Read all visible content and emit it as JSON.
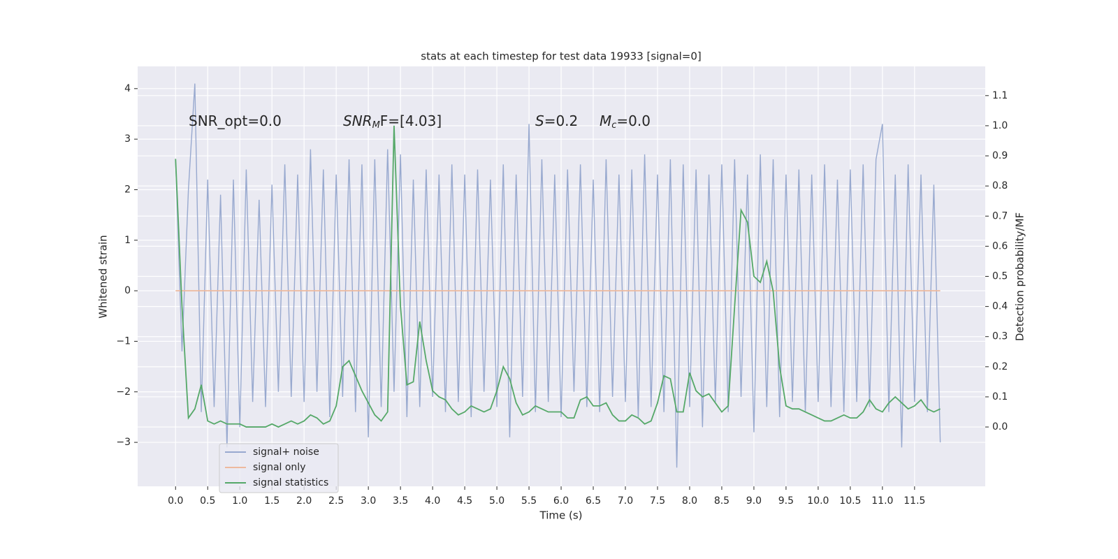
{
  "chart_data": {
    "type": "line",
    "title": "stats at each timestep for test data 19933 [signal=0]",
    "xlabel": "Time (s)",
    "ylabel": "Whitened strain",
    "y2label": "Detection probability/MF",
    "grid": true,
    "legend": "lower left",
    "xlim": [
      -0.59,
      12.6
    ],
    "ylim": [
      -3.87,
      4.44
    ],
    "y2lim": [
      -0.197,
      1.197
    ],
    "xticks": [
      {
        "value": 0,
        "label": "0.0"
      },
      0.5,
      {
        "value": 1,
        "label": "1.0"
      },
      1.5,
      {
        "value": 2,
        "label": "2.0"
      },
      2.5,
      {
        "value": 3,
        "label": "3.0"
      },
      3.5,
      {
        "value": 4,
        "label": "4.0"
      },
      4.5,
      {
        "value": 5,
        "label": "5.0"
      },
      5.5,
      {
        "value": 6,
        "label": "6.0"
      },
      6.5,
      {
        "value": 7,
        "label": "7.0"
      },
      7.5,
      {
        "value": 8,
        "label": "8.0"
      },
      8.5,
      {
        "value": 9,
        "label": "9.0"
      },
      9.5,
      {
        "value": 10,
        "label": "10.0"
      },
      10.5,
      {
        "value": 11,
        "label": "11.0"
      },
      11.5
    ],
    "yticks": [
      {
        "value": -3,
        "label": "−3"
      },
      {
        "value": -2,
        "label": "−2"
      },
      {
        "value": -1,
        "label": "−1"
      },
      0,
      1,
      2,
      3,
      4
    ],
    "y2ticks": [
      {
        "value": 0,
        "label": "0.0"
      },
      0.1,
      0.2,
      0.3,
      0.4,
      0.5,
      0.6,
      0.7,
      0.8,
      0.9,
      {
        "value": 1,
        "label": "1.0"
      },
      1.1
    ],
    "annotations": [
      [
        {
          "t": "SNR_opt=0.0"
        }
      ],
      [
        {
          "t": "SNR",
          "i": true
        },
        {
          "t": "M",
          "i": true,
          "sub": true
        },
        {
          "t": "F=[4.03]",
          "i": false
        }
      ],
      [
        {
          "t": "S",
          "i": true
        },
        {
          "t": "=0.2"
        }
      ],
      [
        {
          "t": "M",
          "i": true
        },
        {
          "t": "c",
          "i": true,
          "sub": true
        },
        {
          "t": "=0.0"
        }
      ]
    ],
    "x": [
      0,
      0.1,
      0.2,
      0.3,
      0.4,
      0.5,
      0.6,
      0.7,
      0.8,
      0.9,
      1,
      1.1,
      1.2,
      1.3,
      1.4,
      1.5,
      1.6,
      1.7,
      1.8,
      1.9,
      2,
      2.1,
      2.2,
      2.3,
      2.4,
      2.5,
      2.6,
      2.7,
      2.8,
      2.9,
      3,
      3.1,
      3.2,
      3.3,
      3.4,
      3.5,
      3.6,
      3.7,
      3.8,
      3.9,
      4,
      4.1,
      4.2,
      4.3,
      4.4,
      4.5,
      4.6,
      4.7,
      4.8,
      4.9,
      5,
      5.1,
      5.2,
      5.3,
      5.4,
      5.5,
      5.6,
      5.7,
      5.8,
      5.9,
      6,
      6.1,
      6.2,
      6.3,
      6.4,
      6.5,
      6.6,
      6.7,
      6.8,
      6.9,
      7,
      7.1,
      7.2,
      7.3,
      7.4,
      7.5,
      7.6,
      7.7,
      7.8,
      7.9,
      8,
      8.1,
      8.2,
      8.3,
      8.4,
      8.5,
      8.6,
      8.7,
      8.8,
      8.9,
      9,
      9.1,
      9.2,
      9.3,
      9.4,
      9.5,
      9.6,
      9.7,
      9.8,
      9.9,
      10,
      10.1,
      10.2,
      10.3,
      10.4,
      10.5,
      10.6,
      10.7,
      10.8,
      10.9,
      11,
      11.1,
      11.2,
      11.3,
      11.4,
      11.5,
      11.6,
      11.7,
      11.8,
      11.9
    ],
    "series": [
      {
        "name": "signal+ noise",
        "color": "#98a9cf",
        "values": [
          2.6,
          -1.2,
          2.0,
          4.1,
          -2.4,
          2.2,
          -2.3,
          1.9,
          -3.1,
          2.2,
          -2.7,
          2.4,
          -2.2,
          1.8,
          -2.3,
          2.1,
          -2.0,
          2.5,
          -2.1,
          2.3,
          -2.2,
          2.8,
          -2.0,
          2.4,
          -2.5,
          2.3,
          -2.1,
          2.6,
          -2.4,
          2.5,
          -2.9,
          2.6,
          -2.3,
          2.8,
          -2.0,
          2.7,
          -2.5,
          2.2,
          -2.3,
          2.4,
          -2.1,
          2.3,
          -2.4,
          2.5,
          -2.2,
          2.3,
          -2.5,
          2.4,
          -2.0,
          2.2,
          -2.3,
          2.5,
          -2.9,
          2.3,
          -2.1,
          3.3,
          -2.4,
          2.6,
          -2.2,
          2.3,
          -2.5,
          2.4,
          -2.0,
          2.5,
          -2.3,
          2.2,
          -2.4,
          2.6,
          -2.1,
          2.3,
          -2.2,
          2.4,
          -2.5,
          2.7,
          -2.3,
          2.3,
          -2.4,
          2.6,
          -3.5,
          2.5,
          -2.3,
          2.4,
          -2.7,
          2.3,
          -2.2,
          2.5,
          -2.4,
          2.6,
          -2.1,
          2.3,
          -2.8,
          2.7,
          -2.3,
          2.6,
          -2.5,
          2.3,
          -2.2,
          2.4,
          -2.4,
          2.3,
          -2.2,
          2.5,
          -2.3,
          2.2,
          -2.4,
          2.4,
          -2.2,
          2.5,
          -2.3,
          2.6,
          3.3,
          -2.4,
          2.3,
          -3.1,
          2.5,
          -2.2,
          2.3,
          -2.4,
          2.1,
          -3.0
        ]
      },
      {
        "name": "signal only",
        "color": "#eeb99e",
        "values": [
          0,
          0,
          0,
          0,
          0,
          0,
          0,
          0,
          0,
          0,
          0,
          0,
          0,
          0,
          0,
          0,
          0,
          0,
          0,
          0,
          0,
          0,
          0,
          0,
          0,
          0,
          0,
          0,
          0,
          0,
          0,
          0,
          0,
          0,
          0,
          0,
          0,
          0,
          0,
          0,
          0,
          0,
          0,
          0,
          0,
          0,
          0,
          0,
          0,
          0,
          0,
          0,
          0,
          0,
          0,
          0,
          0,
          0,
          0,
          0,
          0,
          0,
          0,
          0,
          0,
          0,
          0,
          0,
          0,
          0,
          0,
          0,
          0,
          0,
          0,
          0,
          0,
          0,
          0,
          0,
          0,
          0,
          0,
          0,
          0,
          0,
          0,
          0,
          0,
          0,
          0,
          0,
          0,
          0,
          0,
          0,
          0,
          0,
          0,
          0,
          0,
          0,
          0,
          0,
          0,
          0,
          0,
          0,
          0,
          0,
          0,
          0,
          0,
          0,
          0,
          0,
          0,
          0,
          0,
          0
        ]
      },
      {
        "name": "signal statistics",
        "color": "#55a868",
        "axis": "y2",
        "values": [
          0.89,
          0.4,
          0.03,
          0.06,
          0.14,
          0.02,
          0.01,
          0.02,
          0.01,
          0.01,
          0.01,
          0.0,
          0.0,
          0.0,
          0.0,
          0.01,
          0.0,
          0.01,
          0.02,
          0.01,
          0.02,
          0.04,
          0.03,
          0.01,
          0.02,
          0.07,
          0.2,
          0.22,
          0.17,
          0.12,
          0.08,
          0.04,
          0.02,
          0.05,
          1.0,
          0.4,
          0.14,
          0.15,
          0.35,
          0.22,
          0.12,
          0.1,
          0.09,
          0.06,
          0.04,
          0.05,
          0.07,
          0.06,
          0.05,
          0.06,
          0.12,
          0.2,
          0.16,
          0.08,
          0.04,
          0.05,
          0.07,
          0.06,
          0.05,
          0.05,
          0.05,
          0.03,
          0.03,
          0.09,
          0.1,
          0.07,
          0.07,
          0.08,
          0.04,
          0.02,
          0.02,
          0.04,
          0.03,
          0.01,
          0.02,
          0.08,
          0.17,
          0.16,
          0.05,
          0.05,
          0.18,
          0.12,
          0.1,
          0.11,
          0.08,
          0.05,
          0.07,
          0.4,
          0.72,
          0.68,
          0.5,
          0.48,
          0.55,
          0.45,
          0.2,
          0.07,
          0.06,
          0.06,
          0.05,
          0.04,
          0.03,
          0.02,
          0.02,
          0.03,
          0.04,
          0.03,
          0.03,
          0.05,
          0.09,
          0.06,
          0.05,
          0.08,
          0.1,
          0.08,
          0.06,
          0.07,
          0.09,
          0.06,
          0.05,
          0.06
        ]
      }
    ]
  }
}
